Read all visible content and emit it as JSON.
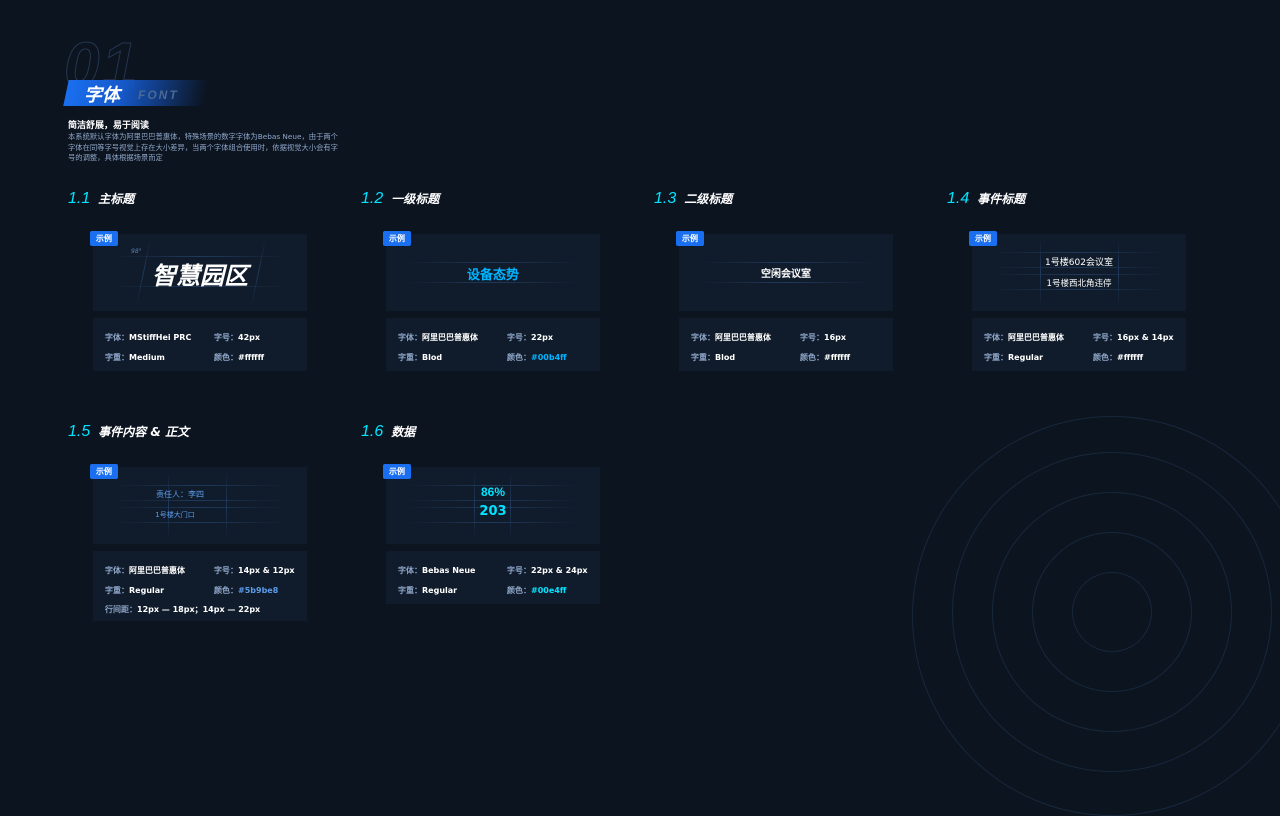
{
  "header": {
    "number": "01",
    "title": "字体",
    "title_en": "FONT",
    "subtitle": "简洁舒展，易于阅读",
    "description": "本系统默认字体为阿里巴巴普惠体，特殊场景的数字字体为Bebas Neue，由于两个字体在同等字号视觉上存在大小差异，当两个字体组合使用时，依据视觉大小会有字号的调整，具体根据场景而定"
  },
  "labels": {
    "tag": "示例",
    "font": "字体：",
    "size": "字号：",
    "weight": "字重：",
    "color": "颜色：",
    "line_height": "行间距："
  },
  "sections": [
    {
      "num": "1.1",
      "title": "主标题",
      "sample": [
        "智慧园区"
      ],
      "angle": "98°",
      "font": "MStiffHei PRC",
      "size": "42px",
      "weight": "Medium",
      "color": "#ffffff"
    },
    {
      "num": "1.2",
      "title": "一级标题",
      "sample": [
        "设备态势"
      ],
      "font": "阿里巴巴普惠体",
      "size": "22px",
      "weight": "Blod",
      "color": "#00b4ff"
    },
    {
      "num": "1.3",
      "title": "二级标题",
      "sample": [
        "空闲会议室"
      ],
      "font": "阿里巴巴普惠体",
      "size": "16px",
      "weight": "Blod",
      "color": "#ffffff"
    },
    {
      "num": "1.4",
      "title": "事件标题",
      "sample": [
        "1号楼602会议室",
        "1号楼西北角违停"
      ],
      "font": "阿里巴巴普惠体",
      "size": "16px & 14px",
      "weight": "Regular",
      "color": "#ffffff"
    },
    {
      "num": "1.5",
      "title": "事件内容 & 正文",
      "sample": [
        "责任人：李四",
        "1号楼大门口"
      ],
      "font": "阿里巴巴普惠体",
      "size": "14px & 12px",
      "weight": "Regular",
      "color": "#5b9be8",
      "line_height": "12px — 18px；14px — 22px"
    },
    {
      "num": "1.6",
      "title": "数据",
      "sample": [
        "86%",
        "203"
      ],
      "font": "Bebas Neue",
      "size": "22px & 24px",
      "weight": "Regular",
      "color": "#00e4ff"
    }
  ],
  "colors": {
    "background": "#0c1420",
    "accent": "#1a6ff0",
    "cyan": "#00e4ff"
  }
}
